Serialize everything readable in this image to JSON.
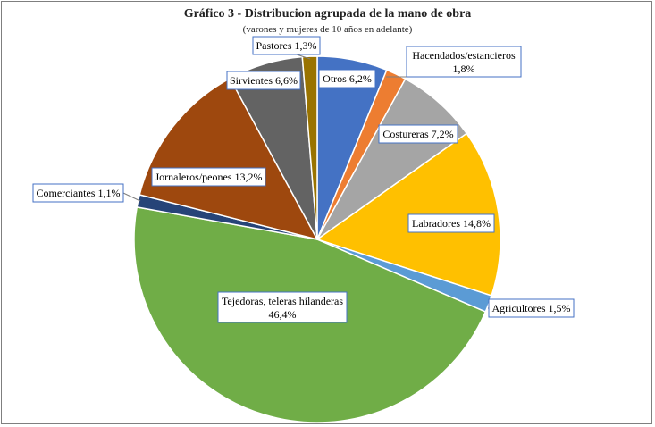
{
  "chart_data": {
    "type": "pie",
    "title": "Gráfico 3 - Distribucion agrupada de la mano de obra",
    "subtitle": "(varones y mujeres de 10 años en adelante)",
    "start": "12 o'clock, clockwise",
    "slices": [
      {
        "category": "Otros",
        "value": 6.2,
        "label": "Otros 6,2%",
        "color": "#4472c4"
      },
      {
        "category": "Hacendados/estancieros",
        "value": 1.8,
        "label": "Hacendados/estancieros 1,8%",
        "color": "#ed7d31"
      },
      {
        "category": "Costureras",
        "value": 7.2,
        "label": "Costureras 7,2%",
        "color": "#a5a5a5"
      },
      {
        "category": "Labradores",
        "value": 14.8,
        "label": "Labradores 14,8%",
        "color": "#ffc000"
      },
      {
        "category": "Agricultores",
        "value": 1.5,
        "label": "Agricultores 1,5%",
        "color": "#5b9bd5"
      },
      {
        "category": "Tejedoras, teleras hilanderas",
        "value": 46.4,
        "label": "Tejedoras, teleras hilanderas 46,4%",
        "color": "#70ad47"
      },
      {
        "category": "Comerciantes",
        "value": 1.1,
        "label": "Comerciantes 1,1%",
        "color": "#264478"
      },
      {
        "category": "Jornaleros/peones",
        "value": 13.2,
        "label": "Jornaleros/peones 13,2%",
        "color": "#9e480e"
      },
      {
        "category": "Sirvientes",
        "value": 6.6,
        "label": "Sirvientes 6,6%",
        "color": "#636363"
      },
      {
        "category": "Pastores",
        "value": 1.3,
        "label": "Pastores 1,3%",
        "color": "#997300"
      }
    ]
  }
}
